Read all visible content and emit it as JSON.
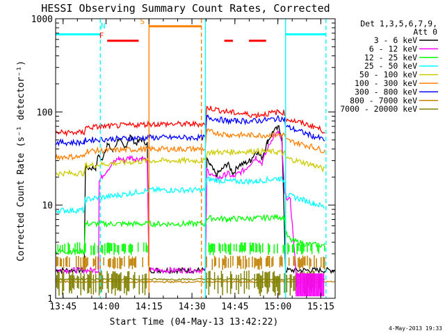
{
  "chart_data": {
    "type": "line",
    "title": "HESSI Observing Summary Count Rates, Corrected",
    "xlabel": "Start Time (04-May-13 13:42:22)",
    "ylabel": "Corrected Count Rate (s⁻¹ detector⁻¹)",
    "x_unit": "minutes since 13:42:22",
    "xlim": [
      0,
      97.6
    ],
    "ylim": [
      1,
      1000
    ],
    "yscale": "log",
    "x_ticks": [
      {
        "label": "13:45",
        "x": 2.6
      },
      {
        "label": "14:00",
        "x": 17.6
      },
      {
        "label": "14:15",
        "x": 32.6
      },
      {
        "label": "14:30",
        "x": 47.6
      },
      {
        "label": "14:45",
        "x": 62.6
      },
      {
        "label": "15:00",
        "x": 77.6
      },
      {
        "label": "15:15",
        "x": 92.6
      }
    ],
    "y_ticks": [
      {
        "label": "1",
        "y": 1
      },
      {
        "label": "10",
        "y": 10
      },
      {
        "label": "100",
        "y": 100
      },
      {
        "label": "1000",
        "y": 1000
      }
    ],
    "legend_header": [
      "Det 1,3,5,6,7,9,",
      "Att 0"
    ],
    "legend_position": "right",
    "series": [
      {
        "name": "3 - 6 keV",
        "color": "#000000",
        "points": [
          [
            0,
            2
          ],
          [
            10,
            2
          ],
          [
            10.4,
            25
          ],
          [
            14,
            25
          ],
          [
            15,
            35
          ],
          [
            16,
            30
          ],
          [
            18,
            45
          ],
          [
            20,
            38
          ],
          [
            22,
            52
          ],
          [
            24,
            40
          ],
          [
            26,
            55
          ],
          [
            28,
            46
          ],
          [
            30,
            50
          ],
          [
            32,
            46
          ],
          [
            32.6,
            2
          ],
          [
            52.3,
            2
          ],
          [
            52.8,
            30
          ],
          [
            54,
            27
          ],
          [
            56,
            21
          ],
          [
            58,
            24
          ],
          [
            60,
            28
          ],
          [
            62,
            22
          ],
          [
            64,
            27
          ],
          [
            66,
            28
          ],
          [
            68,
            30
          ],
          [
            70,
            38
          ],
          [
            72,
            32
          ],
          [
            74,
            48
          ],
          [
            76,
            62
          ],
          [
            78,
            68
          ],
          [
            79,
            55
          ],
          [
            80.3,
            2
          ],
          [
            97.6,
            2
          ]
        ]
      },
      {
        "name": "6 - 12 keV",
        "color": "#ff00ff",
        "points": [
          [
            0,
            2
          ],
          [
            15,
            2
          ],
          [
            15.2,
            18
          ],
          [
            16,
            20
          ],
          [
            18,
            24
          ],
          [
            20,
            28
          ],
          [
            22,
            32
          ],
          [
            24,
            30
          ],
          [
            26,
            33
          ],
          [
            28,
            31
          ],
          [
            30,
            32
          ],
          [
            32,
            30
          ],
          [
            32.6,
            2
          ],
          [
            52.3,
            2
          ],
          [
            52.8,
            24
          ],
          [
            54,
            22
          ],
          [
            56,
            19
          ],
          [
            58,
            20
          ],
          [
            60,
            22
          ],
          [
            62,
            20
          ],
          [
            64,
            22
          ],
          [
            66,
            24
          ],
          [
            68,
            28
          ],
          [
            70,
            33
          ],
          [
            72,
            28
          ],
          [
            74,
            40
          ],
          [
            76,
            55
          ],
          [
            78,
            60
          ],
          [
            79,
            45
          ],
          [
            80,
            13
          ],
          [
            82,
            11
          ],
          [
            84,
            1.8
          ],
          [
            90,
            1.8
          ]
        ]
      },
      {
        "name": "12 - 25 keV",
        "color": "#00ff00",
        "points": [
          [
            0,
            3.2
          ],
          [
            10,
            3.2
          ],
          [
            10.4,
            6.3
          ],
          [
            32.6,
            6.3
          ],
          [
            52.3,
            6.3
          ],
          [
            52.8,
            7.3
          ],
          [
            60,
            7.1
          ],
          [
            70,
            7.2
          ],
          [
            78,
            7.5
          ],
          [
            80,
            7.3
          ],
          [
            80.3,
            5
          ],
          [
            82,
            4.2
          ],
          [
            88,
            3.8
          ],
          [
            94,
            3.7
          ]
        ]
      },
      {
        "name": "25 - 50 keV",
        "color": "#00ffff",
        "points": [
          [
            0,
            8.8
          ],
          [
            10,
            8.8
          ],
          [
            10.4,
            11.5
          ],
          [
            20,
            12.5
          ],
          [
            32.6,
            14.5
          ],
          [
            52.3,
            14.5
          ],
          [
            52.8,
            19
          ],
          [
            60,
            18
          ],
          [
            70,
            18
          ],
          [
            78,
            19.5
          ],
          [
            80,
            18
          ],
          [
            80.3,
            13
          ],
          [
            90,
            10.5
          ],
          [
            94,
            9.5
          ]
        ]
      },
      {
        "name": "50 - 100 keV",
        "color": "#cccc00",
        "points": [
          [
            0,
            22
          ],
          [
            10,
            22
          ],
          [
            10.4,
            26.5
          ],
          [
            32.6,
            30
          ],
          [
            52.3,
            30
          ],
          [
            52.8,
            37
          ],
          [
            60,
            37
          ],
          [
            70,
            38
          ],
          [
            78,
            37
          ],
          [
            80,
            36
          ],
          [
            80.3,
            32
          ],
          [
            90,
            27
          ],
          [
            94,
            24
          ]
        ]
      },
      {
        "name": "100 - 300 keV",
        "color": "#ff8000",
        "points": [
          [
            0,
            33
          ],
          [
            10,
            33
          ],
          [
            10.4,
            38
          ],
          [
            32.6,
            40
          ],
          [
            52.3,
            40
          ],
          [
            52.8,
            62
          ],
          [
            60,
            57
          ],
          [
            70,
            56
          ],
          [
            78,
            57
          ],
          [
            80,
            57
          ],
          [
            80.3,
            50
          ],
          [
            90,
            42
          ],
          [
            94,
            38
          ]
        ]
      },
      {
        "name": "300 - 800 keV",
        "color": "#0000ff",
        "points": [
          [
            0,
            47
          ],
          [
            10,
            47
          ],
          [
            10.4,
            50
          ],
          [
            32.6,
            53
          ],
          [
            52.3,
            53
          ],
          [
            52.8,
            88
          ],
          [
            60,
            80
          ],
          [
            70,
            80
          ],
          [
            78,
            85
          ],
          [
            80,
            84
          ],
          [
            80.3,
            70
          ],
          [
            90,
            55
          ],
          [
            94,
            50
          ]
        ]
      },
      {
        "name": "800 - 7000 keV",
        "color": "#c08000",
        "points": [
          [
            0,
            1.5
          ],
          [
            97.6,
            1.5
          ]
        ]
      },
      {
        "name": "7000 - 20000 keV",
        "color": "#808000",
        "points": [
          [
            0,
            1.6
          ],
          [
            32.6,
            1.6
          ],
          [
            52.3,
            1.6
          ],
          [
            94,
            1.6
          ]
        ]
      },
      {
        "name": "",
        "color": "#ff0000",
        "points": [
          [
            0,
            60
          ],
          [
            10,
            60
          ],
          [
            10.4,
            68
          ],
          [
            32.6,
            74
          ],
          [
            52.3,
            74
          ],
          [
            52.8,
            112
          ],
          [
            60,
            100
          ],
          [
            70,
            92
          ],
          [
            78,
            100
          ],
          [
            80,
            98
          ],
          [
            80.3,
            85
          ],
          [
            90,
            70
          ],
          [
            94,
            62
          ]
        ]
      }
    ],
    "annotations": [
      {
        "label": "N",
        "color": "#00ffff",
        "x": 16.6,
        "y": 790
      },
      {
        "label": "F",
        "color": "#ff0000",
        "x": 16.0,
        "y": 620
      },
      {
        "label": "S",
        "color": "#ff8000",
        "x": 30.3,
        "y": 880
      }
    ],
    "flag_bars": [
      {
        "color": "#00ffff",
        "y": 680,
        "x": [
          0,
          15.6
        ]
      },
      {
        "color": "#ff0000",
        "y": 580,
        "x": [
          18.0,
          29.0
        ]
      },
      {
        "color": "#ff8000",
        "y": 830,
        "x": [
          32.6,
          50.9
        ]
      },
      {
        "color": "#ff0000",
        "y": 580,
        "x": [
          58.9,
          61.9
        ]
      },
      {
        "color": "#ff0000",
        "y": 580,
        "x": [
          67.5,
          73.5
        ]
      },
      {
        "color": "#00ffff",
        "y": 680,
        "x": [
          80.3,
          94.4
        ]
      }
    ],
    "vertical_lines": [
      {
        "color": "#00ffff",
        "x": 15.6,
        "style": "dashed"
      },
      {
        "color": "#ff8000",
        "x": 32.6,
        "style": "solid"
      },
      {
        "color": "#ff8000",
        "x": 50.9,
        "style": "dashed"
      },
      {
        "color": "#00ffff",
        "x": 52.3,
        "style": "solid"
      },
      {
        "color": "#00ffff",
        "x": 80.3,
        "style": "solid"
      },
      {
        "color": "#00ffff",
        "x": 94.4,
        "style": "dashed"
      }
    ],
    "timestamp": "4-May-2013 19:33"
  }
}
